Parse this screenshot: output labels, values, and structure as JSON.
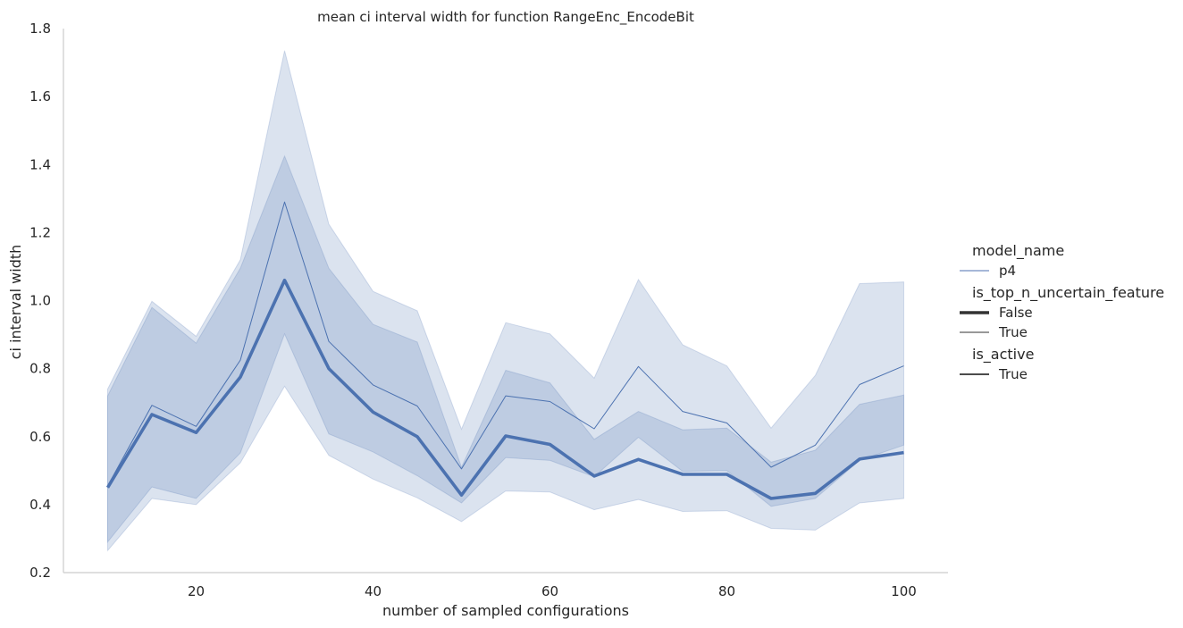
{
  "chart_data": {
    "type": "line",
    "title": "mean ci interval width for function RangeEnc_EncodeBit",
    "xlabel": "number of sampled configurations",
    "ylabel": "ci interval width",
    "xlim": [
      5,
      105
    ],
    "ylim": [
      0.2,
      1.8
    ],
    "xticks": [
      20,
      40,
      60,
      80,
      100
    ],
    "yticks": [
      0.2,
      0.4,
      0.6,
      0.8,
      1.0,
      1.2,
      1.4,
      1.6,
      1.8
    ],
    "grid": false,
    "legend_position": "right",
    "color": "#4c72b0",
    "x": [
      10,
      15,
      20,
      25,
      30,
      35,
      40,
      45,
      50,
      55,
      60,
      65,
      70,
      75,
      80,
      85,
      90,
      95,
      100
    ],
    "series": [
      {
        "name": "False",
        "values": [
          0.45,
          0.665,
          0.612,
          0.775,
          1.06,
          0.8,
          0.672,
          0.6,
          0.428,
          0.602,
          0.577,
          0.484,
          0.533,
          0.489,
          0.489,
          0.418,
          0.433,
          0.534,
          0.553
        ],
        "ci_low": [
          0.29,
          0.452,
          0.418,
          0.552,
          0.902,
          0.608,
          0.555,
          0.485,
          0.405,
          0.538,
          0.53,
          0.482,
          0.598,
          0.498,
          0.5,
          0.395,
          0.418,
          0.53,
          0.575
        ],
        "ci_high": [
          0.72,
          0.98,
          0.875,
          1.095,
          1.425,
          1.095,
          0.93,
          0.878,
          0.51,
          0.795,
          0.758,
          0.592,
          0.674,
          0.62,
          0.625,
          0.525,
          0.56,
          0.695,
          0.722
        ]
      },
      {
        "name": "True",
        "values": [
          0.455,
          0.692,
          0.63,
          0.825,
          1.29,
          0.88,
          0.752,
          0.69,
          0.505,
          0.72,
          0.703,
          0.623,
          0.806,
          0.674,
          0.64,
          0.51,
          0.575,
          0.753,
          0.808
        ],
        "ci_low": [
          0.265,
          0.418,
          0.4,
          0.523,
          0.748,
          0.545,
          0.475,
          0.42,
          0.35,
          0.44,
          0.437,
          0.385,
          0.415,
          0.38,
          0.382,
          0.33,
          0.325,
          0.405,
          0.418
        ],
        "ci_high": [
          0.74,
          0.998,
          0.895,
          1.12,
          1.735,
          1.225,
          1.027,
          0.97,
          0.622,
          0.935,
          0.902,
          0.772,
          1.062,
          0.87,
          0.808,
          0.625,
          0.78,
          1.05,
          1.055
        ]
      }
    ],
    "legend": [
      {
        "title": "model_name",
        "entries": [
          {
            "label": "p4",
            "width": "thin"
          }
        ]
      },
      {
        "title": "is_top_n_uncertain_feature",
        "entries": [
          {
            "label": "False",
            "width": "thick"
          },
          {
            "label": "True",
            "width": "thin"
          }
        ]
      },
      {
        "title": "is_active",
        "entries": [
          {
            "label": "True",
            "width": "dark"
          }
        ]
      }
    ]
  }
}
